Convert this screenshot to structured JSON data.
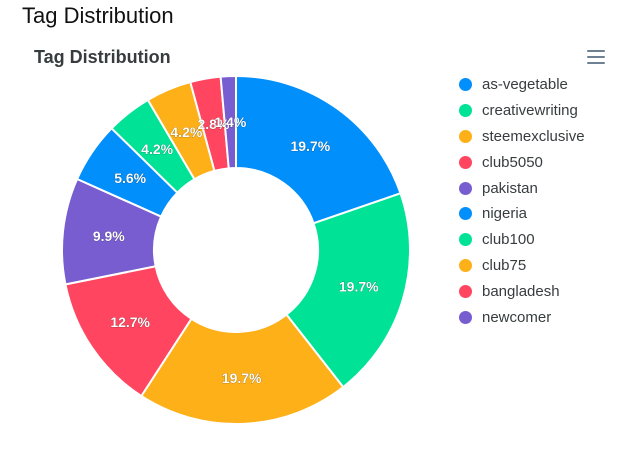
{
  "page": {
    "title": "Tag Distribution"
  },
  "toolbar": {
    "menu_icon": "hamburger-menu-icon"
  },
  "colors": {
    "blue": "#008ffb",
    "green": "#00e396",
    "orange": "#feb019",
    "red": "#ff4560",
    "purple": "#775dd0"
  },
  "chart_data": {
    "type": "donut",
    "title": "Tag Distribution",
    "labels": [
      "as-vegetable",
      "creativewriting",
      "steemexclusive",
      "club5050",
      "pakistan",
      "nigeria",
      "club100",
      "club75",
      "bangladesh",
      "newcomer"
    ],
    "values": [
      14,
      14,
      14,
      9,
      7,
      4,
      3,
      3,
      2,
      1
    ],
    "data_labels": [
      "19.7%",
      "19.7%",
      "19.7%",
      "12.7%",
      "9.9%",
      "5.6%",
      "4.2%",
      "4.2%",
      "2.8%",
      "1.4%"
    ],
    "colors": [
      "#008ffb",
      "#00e396",
      "#feb019",
      "#ff4560",
      "#775dd0",
      "#008ffb",
      "#00e396",
      "#feb019",
      "#ff4560",
      "#775dd0"
    ],
    "legend_position": "right"
  }
}
